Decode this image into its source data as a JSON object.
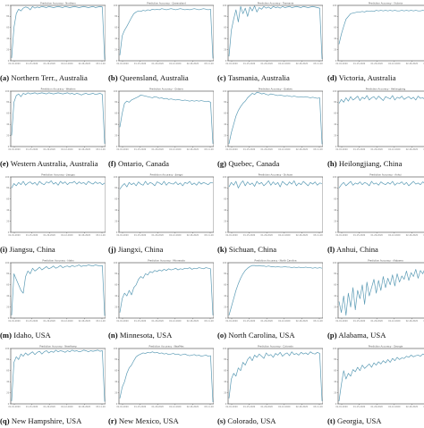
{
  "figure": {
    "ylim": [
      0,
      100
    ],
    "line_color": "#5b9bb5",
    "axis_color": "#444444",
    "tick_x": [
      "01-01-2020",
      "01-15-2020",
      "01-29-2020",
      "02-12-2020",
      "02-26-2020",
      "03-11-2020"
    ],
    "tick_y": [
      "0",
      "20",
      "40",
      "60",
      "80",
      "100"
    ]
  },
  "chart_data": [
    {
      "type": "line",
      "tag": "(a)",
      "caption": "Northern Terr., Australia",
      "title": "Prediction Accuracy - Northern",
      "values": [
        5,
        60,
        85,
        93,
        90,
        95,
        97,
        96,
        92,
        98,
        95,
        97,
        96,
        98,
        97,
        96,
        98,
        97,
        96,
        97,
        98,
        97,
        96,
        98,
        97,
        96,
        97,
        98,
        97,
        96,
        97,
        98,
        97,
        96,
        97,
        98,
        96,
        97,
        98,
        97,
        2
      ]
    },
    {
      "type": "line",
      "tag": "(b)",
      "caption": "Queensland, Australia",
      "title": "Prediction Accuracy - Queensland",
      "values": [
        10,
        45,
        55,
        62,
        70,
        78,
        85,
        88,
        90,
        89,
        91,
        90,
        92,
        91,
        93,
        92,
        93,
        92,
        94,
        93,
        92,
        93,
        94,
        93,
        92,
        93,
        94,
        93,
        92,
        93,
        92,
        93,
        94,
        93,
        92,
        93,
        94,
        93,
        92,
        93,
        4
      ]
    },
    {
      "type": "line",
      "tag": "(c)",
      "caption": "Tasmania, Australia",
      "title": "Prediction Accuracy - Tasmania",
      "values": [
        8,
        55,
        75,
        92,
        70,
        98,
        85,
        95,
        80,
        97,
        90,
        99,
        88,
        96,
        93,
        98,
        95,
        97,
        94,
        98,
        96,
        97,
        95,
        98,
        96,
        97,
        98,
        96,
        97,
        98,
        97,
        96,
        98,
        97,
        96,
        97,
        98,
        97,
        96,
        95,
        3
      ]
    },
    {
      "type": "line",
      "tag": "(d)",
      "caption": "Victoria, Australia",
      "title": "Prediction Accuracy - Victoria",
      "values": [
        30,
        48,
        62,
        75,
        80,
        85,
        86,
        87,
        88,
        88,
        89,
        88,
        90,
        89,
        90,
        89,
        91,
        90,
        91,
        90,
        91,
        90,
        91,
        90,
        91,
        90,
        90,
        91,
        90,
        91,
        90,
        91,
        90,
        91,
        90,
        90,
        91,
        90,
        91,
        90,
        92
      ]
    },
    {
      "type": "line",
      "tag": "(e)",
      "caption": "Western Australia, Australia",
      "title": "Prediction Accuracy - Western",
      "values": [
        20,
        80,
        92,
        95,
        90,
        96,
        94,
        97,
        95,
        96,
        97,
        95,
        96,
        97,
        96,
        95,
        97,
        96,
        95,
        96,
        97,
        96,
        95,
        96,
        97,
        95,
        96,
        94,
        96,
        95,
        93,
        95,
        96,
        94,
        95,
        96,
        94,
        95,
        96,
        94,
        5
      ]
    },
    {
      "type": "line",
      "tag": "(f)",
      "caption": "Ontario, Canada",
      "title": "Prediction Accuracy - Ontario",
      "values": [
        35,
        60,
        78,
        82,
        80,
        84,
        86,
        88,
        90,
        93,
        92,
        91,
        90,
        89,
        88,
        90,
        89,
        87,
        88,
        86,
        87,
        85,
        86,
        85,
        84,
        85,
        84,
        83,
        84,
        83,
        82,
        83,
        82,
        83,
        82,
        83,
        82,
        81,
        82,
        80,
        5
      ]
    },
    {
      "type": "line",
      "tag": "(g)",
      "caption": "Quebec, Canada",
      "title": "Prediction Accuracy - Quebec",
      "values": [
        5,
        25,
        40,
        55,
        65,
        72,
        78,
        82,
        88,
        92,
        96,
        94,
        98,
        97,
        95,
        96,
        94,
        93,
        95,
        94,
        93,
        92,
        93,
        92,
        91,
        92,
        91,
        90,
        91,
        90,
        89,
        90,
        89,
        90,
        89,
        88,
        89,
        88,
        87,
        88,
        4
      ]
    },
    {
      "type": "line",
      "tag": "(h)",
      "caption": "Heilongjiang, China",
      "title": "Prediction Accuracy - Heilongjiang",
      "values": [
        78,
        85,
        80,
        88,
        82,
        90,
        84,
        87,
        91,
        83,
        89,
        86,
        92,
        84,
        88,
        90,
        85,
        91,
        87,
        83,
        90,
        88,
        86,
        92,
        84,
        89,
        87,
        91,
        85,
        88,
        90,
        86,
        89,
        84,
        91,
        87,
        88,
        85,
        90,
        87,
        89
      ]
    },
    {
      "type": "line",
      "tag": "(i)",
      "caption": "Jiangsu, China",
      "title": "Prediction Accuracy - Jiangsu",
      "values": [
        80,
        88,
        84,
        90,
        86,
        92,
        85,
        89,
        91,
        87,
        90,
        85,
        92,
        88,
        86,
        91,
        89,
        93,
        87,
        90,
        85,
        92,
        88,
        91,
        86,
        90,
        89,
        92,
        87,
        91,
        88,
        90,
        86,
        92,
        89,
        87,
        91,
        88,
        90,
        86,
        89
      ]
    },
    {
      "type": "line",
      "tag": "(j)",
      "caption": "Jiangxi, China",
      "title": "Prediction Accuracy - Jiangxi",
      "values": [
        78,
        84,
        88,
        82,
        90,
        86,
        89,
        84,
        91,
        87,
        85,
        92,
        86,
        90,
        88,
        84,
        91,
        89,
        86,
        92,
        85,
        90,
        88,
        87,
        91,
        86,
        89,
        84,
        90,
        88,
        92,
        86,
        89,
        85,
        91,
        87,
        90,
        88,
        86,
        90,
        89
      ]
    },
    {
      "type": "line",
      "tag": "(k)",
      "caption": "Sichuan, China",
      "title": "Prediction Accuracy - Sichuan",
      "values": [
        82,
        90,
        85,
        92,
        80,
        88,
        93,
        84,
        91,
        86,
        89,
        83,
        92,
        87,
        90,
        84,
        88,
        93,
        85,
        91,
        86,
        90,
        82,
        92,
        88,
        85,
        91,
        87,
        93,
        84,
        89,
        86,
        92,
        88,
        84,
        90,
        87,
        91,
        85,
        89,
        88
      ]
    },
    {
      "type": "line",
      "tag": "(l)",
      "caption": "Anhui, China",
      "title": "Prediction Accuracy - Anhui",
      "values": [
        80,
        86,
        90,
        84,
        88,
        92,
        85,
        89,
        87,
        91,
        86,
        90,
        88,
        84,
        92,
        87,
        89,
        85,
        91,
        88,
        86,
        90,
        87,
        92,
        85,
        89,
        88,
        91,
        86,
        90,
        84,
        88,
        92,
        87,
        89,
        86,
        91,
        88,
        90,
        87,
        89
      ]
    },
    {
      "type": "line",
      "tag": "(m)",
      "caption": "Idaho, USA",
      "title": "Prediction Accuracy - Idaho",
      "values": [
        5,
        80,
        70,
        60,
        50,
        45,
        75,
        85,
        80,
        90,
        85,
        88,
        92,
        87,
        90,
        93,
        89,
        91,
        94,
        90,
        92,
        95,
        91,
        93,
        94,
        92,
        95,
        93,
        94,
        96,
        93,
        95,
        94,
        96,
        95,
        94,
        96,
        95,
        94,
        95,
        4
      ]
    },
    {
      "type": "line",
      "tag": "(n)",
      "caption": "Minnesota, USA",
      "title": "Prediction Accuracy - Minnesota",
      "values": [
        10,
        35,
        45,
        40,
        50,
        42,
        55,
        60,
        70,
        75,
        72,
        80,
        78,
        84,
        82,
        86,
        84,
        87,
        85,
        88,
        86,
        89,
        87,
        88,
        90,
        87,
        89,
        88,
        90,
        89,
        91,
        88,
        90,
        89,
        91,
        90,
        89,
        91,
        90,
        89,
        5
      ]
    },
    {
      "type": "line",
      "tag": "(o)",
      "caption": "North Carolina, USA",
      "title": "Prediction Accuracy - North Carolina",
      "values": [
        5,
        20,
        35,
        50,
        62,
        72,
        80,
        86,
        90,
        93,
        95,
        95,
        94,
        95,
        94,
        94,
        93,
        94,
        93,
        93,
        92,
        93,
        92,
        92,
        93,
        92,
        92,
        91,
        92,
        91,
        92,
        91,
        91,
        92,
        91,
        91,
        90,
        91,
        90,
        91,
        90
      ]
    },
    {
      "type": "line",
      "tag": "(p)",
      "caption": "Alabama, USA",
      "title": "Prediction Accuracy - Alabama",
      "values": [
        30,
        10,
        40,
        5,
        45,
        20,
        55,
        15,
        50,
        35,
        60,
        25,
        65,
        40,
        55,
        70,
        45,
        68,
        50,
        75,
        55,
        72,
        60,
        78,
        58,
        80,
        65,
        76,
        70,
        85,
        68,
        82,
        75,
        88,
        72,
        86,
        80,
        90,
        78,
        92,
        85
      ]
    },
    {
      "type": "line",
      "tag": "(q)",
      "caption": "New Hampshire, USA",
      "title": "Prediction Accuracy - NewHamp",
      "values": [
        5,
        75,
        85,
        80,
        90,
        86,
        92,
        88,
        91,
        94,
        89,
        93,
        95,
        90,
        94,
        96,
        92,
        95,
        93,
        97,
        94,
        96,
        95,
        93,
        96,
        94,
        97,
        95,
        96,
        94,
        95,
        97,
        96,
        94,
        96,
        95,
        96,
        97,
        95,
        96,
        4
      ]
    },
    {
      "type": "line",
      "tag": "(r)",
      "caption": "New Mexico, USA",
      "title": "Prediction Accuracy - NewMex",
      "values": [
        10,
        30,
        40,
        55,
        65,
        70,
        78,
        85,
        88,
        90,
        92,
        91,
        93,
        92,
        94,
        92,
        93,
        91,
        92,
        90,
        91,
        89,
        90,
        91,
        89,
        90,
        88,
        89,
        90,
        88,
        87,
        88,
        89,
        87,
        88,
        86,
        87,
        88,
        86,
        87,
        3
      ]
    },
    {
      "type": "line",
      "tag": "(s)",
      "caption": "Colorado, USA",
      "title": "Prediction Accuracy - Colorado",
      "values": [
        10,
        45,
        55,
        50,
        65,
        60,
        75,
        70,
        80,
        85,
        78,
        88,
        84,
        90,
        86,
        82,
        92,
        87,
        89,
        84,
        91,
        88,
        93,
        86,
        90,
        92,
        87,
        94,
        89,
        91,
        88,
        93,
        90,
        92,
        89,
        94,
        91,
        90,
        93,
        91,
        5
      ]
    },
    {
      "type": "line",
      "tag": "(t)",
      "caption": "Georgia, USA",
      "title": "Prediction Accuracy - Georgia",
      "values": [
        5,
        35,
        60,
        45,
        55,
        50,
        62,
        58,
        66,
        60,
        70,
        64,
        68,
        72,
        66,
        74,
        70,
        76,
        72,
        78,
        74,
        80,
        75,
        82,
        78,
        84,
        80,
        83,
        82,
        86,
        84,
        88,
        85,
        87,
        88,
        86,
        90,
        88,
        89,
        91,
        88
      ]
    }
  ]
}
